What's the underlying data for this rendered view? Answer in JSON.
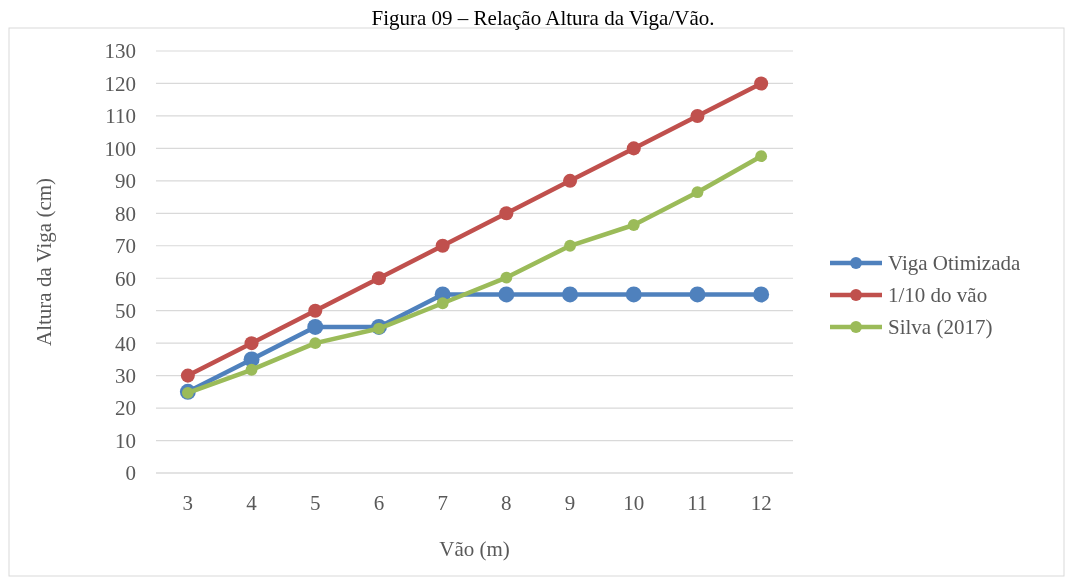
{
  "chart_data": {
    "type": "line",
    "title": "Figura 09 – Relação Altura da Viga/Vão.",
    "xlabel": "Vão (m)",
    "ylabel": "Altura da Viga (cm)",
    "categories": [
      "3",
      "4",
      "5",
      "6",
      "7",
      "8",
      "9",
      "10",
      "11",
      "12"
    ],
    "series": [
      {
        "name": "Viga Otimizada",
        "color": "#4f81bd",
        "values": [
          25,
          35,
          45,
          45,
          55,
          55,
          55,
          55,
          55,
          55
        ]
      },
      {
        "name": "1/10 do vão",
        "color": "#c0504d",
        "values": [
          30,
          40,
          50,
          60,
          70,
          80,
          90,
          100,
          110,
          120
        ]
      },
      {
        "name": "Silva (2017)",
        "color": "#9bbb59",
        "values": [
          24.7,
          31.8,
          40,
          44.5,
          52.3,
          60.2,
          70,
          76.4,
          86.5,
          97.6
        ]
      }
    ],
    "ylim": [
      0,
      130
    ],
    "yticks": [
      0,
      10,
      20,
      30,
      40,
      50,
      60,
      70,
      80,
      90,
      100,
      110,
      120,
      130
    ],
    "grid": "y",
    "legend": "right",
    "marker": "circle",
    "line_style": "solid"
  }
}
